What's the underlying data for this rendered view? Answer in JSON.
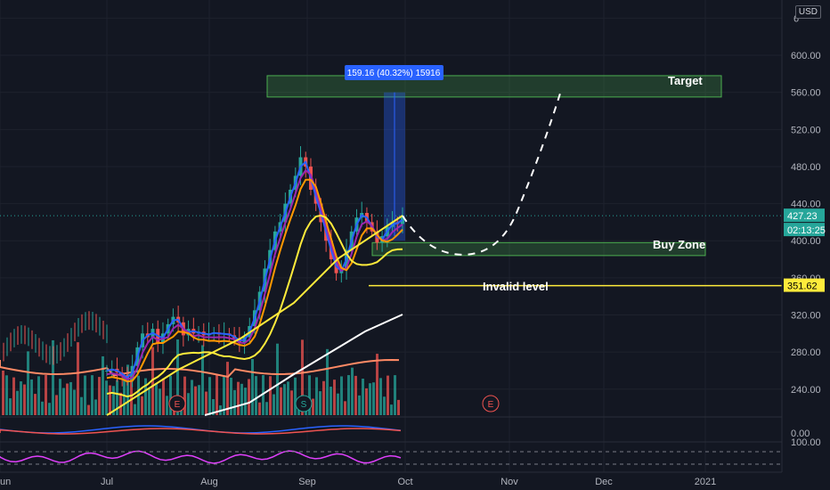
{
  "currency": "USD",
  "colors": {
    "background": "#131722",
    "up": "#26a69a",
    "down": "#ef5350",
    "ema_fast": "#2962ff",
    "ema_mid": "#9c27b0",
    "ema_orange": "#ff9800",
    "sma_yellow": "#ffeb3b",
    "sma_white": "#ffffff",
    "zone_green": "#4caf50",
    "invalid_yellow": "#ffeb3b",
    "osc_magenta": "#e040fb"
  },
  "chart_data": {
    "type": "candlestick",
    "price_axis_ticks": [
      "6",
      "600.00",
      "560.00",
      "520.00",
      "480.00",
      "440.00",
      "400.00",
      "360.00",
      "320.00",
      "280.00",
      "240.00"
    ],
    "ylim": [
      210,
      650
    ],
    "time_axis_ticks": [
      "un",
      "Jul",
      "Aug",
      "Sep",
      "Oct",
      "Nov",
      "Dec",
      "2021"
    ],
    "last_price": "427.23",
    "countdown": "02:13:25",
    "invalid_price": "351.62",
    "indicator_ticks": [
      "0.00",
      "100.00"
    ],
    "event_markers": [
      "E",
      "S",
      "E"
    ],
    "annotations": {
      "measure": "159.16 (40.32%) 15916",
      "target": "Target",
      "buy_zone": "Buy Zone",
      "invalid": "Invalid level"
    },
    "target_zone": [
      555,
      578
    ],
    "buy_zone": [
      384,
      398
    ],
    "projection": [
      [
        427,
        18
      ],
      [
        400,
        32
      ],
      [
        387,
        36
      ],
      [
        420,
        54
      ],
      [
        562,
        72
      ]
    ],
    "price_path": [
      260,
      262,
      258,
      255,
      250,
      265,
      285,
      300,
      296,
      305,
      290,
      300,
      310,
      318,
      312,
      298,
      305,
      300,
      302,
      298,
      300,
      301,
      299,
      300,
      298,
      295,
      290,
      296,
      308,
      325,
      345,
      370,
      390,
      410,
      420,
      440,
      455,
      470,
      490,
      480,
      455,
      440,
      420,
      400,
      380,
      365,
      370,
      390,
      410,
      425,
      430,
      420,
      410,
      398,
      405,
      415,
      420,
      418,
      427
    ]
  }
}
